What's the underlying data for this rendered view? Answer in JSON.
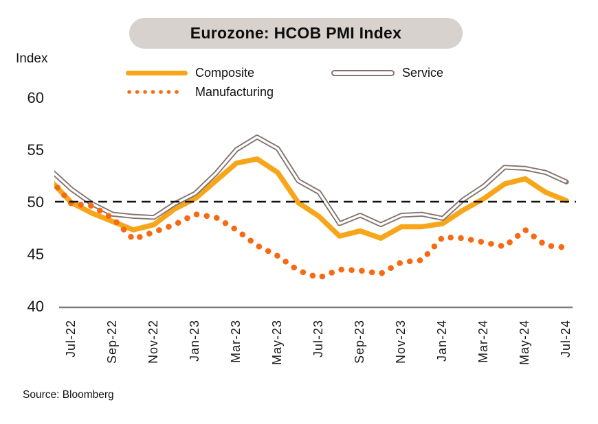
{
  "header": {
    "title": "Eurozone: HCOB PMI Index"
  },
  "y_axis_title": "Index",
  "source": "Source: Bloomberg",
  "colors": {
    "title_pill": "#D8D2CE",
    "axis": "#7D7D7D",
    "reference_dash": "#111111",
    "tick_text": "#1A1A1A"
  },
  "legend": [
    {
      "name": "composite",
      "label": "Composite",
      "style": "solid-thick"
    },
    {
      "name": "service",
      "label": "Service",
      "style": "outlined"
    },
    {
      "name": "manufacturing",
      "label": "Manufacturing",
      "style": "dotted"
    }
  ],
  "chart_data": {
    "type": "line",
    "title": "Eurozone: HCOB PMI Index",
    "xlabel": "",
    "ylabel": "Index",
    "ylim": [
      40,
      61.5
    ],
    "grid": false,
    "legend_position": "top",
    "reference_line": 50,
    "categories": [
      "Jun-22",
      "Jul-22",
      "Aug-22",
      "Sep-22",
      "Oct-22",
      "Nov-22",
      "Dec-22",
      "Jan-23",
      "Feb-23",
      "Mar-23",
      "Apr-23",
      "May-23",
      "Jun-23",
      "Jul-23",
      "Aug-23",
      "Sep-23",
      "Oct-23",
      "Nov-23",
      "Dec-23",
      "Jan-24",
      "Feb-24",
      "Mar-24",
      "Apr-24",
      "May-24",
      "Jun-24",
      "Jul-24"
    ],
    "x_tick_labels": [
      "Jul-22",
      "Sep-22",
      "Nov-22",
      "Jan-23",
      "Mar-23",
      "May-23",
      "Jul-23",
      "Sep-23",
      "Nov-23",
      "Jan-24",
      "Mar-24",
      "May-24",
      "Jul-24"
    ],
    "y_ticks": [
      60,
      55,
      50,
      45,
      40
    ],
    "series": [
      {
        "name": "Composite",
        "color": "#F7A61B",
        "style": "solid",
        "values": [
          52.0,
          49.9,
          48.9,
          48.1,
          47.3,
          47.8,
          49.3,
          50.3,
          52.0,
          53.7,
          54.1,
          52.8,
          49.9,
          48.6,
          46.7,
          47.2,
          46.5,
          47.6,
          47.6,
          47.9,
          49.2,
          50.3,
          51.7,
          52.2,
          50.9,
          50.1
        ]
      },
      {
        "name": "Service",
        "color": "#84746F",
        "style": "outlined",
        "values": [
          53.0,
          51.2,
          49.8,
          48.8,
          48.6,
          48.5,
          49.8,
          50.8,
          52.7,
          55.0,
          56.2,
          55.1,
          52.0,
          50.9,
          47.9,
          48.7,
          47.8,
          48.7,
          48.8,
          48.4,
          50.2,
          51.5,
          53.3,
          53.2,
          52.8,
          51.9
        ]
      },
      {
        "name": "Manufacturing",
        "color": "#F76A13",
        "style": "dotted",
        "values": [
          52.1,
          49.8,
          49.6,
          48.4,
          46.4,
          47.1,
          47.8,
          48.8,
          48.5,
          47.3,
          45.8,
          44.8,
          43.4,
          42.7,
          43.5,
          43.4,
          43.1,
          44.2,
          44.4,
          46.6,
          46.5,
          46.1,
          45.7,
          47.3,
          45.8,
          45.6
        ]
      }
    ]
  }
}
